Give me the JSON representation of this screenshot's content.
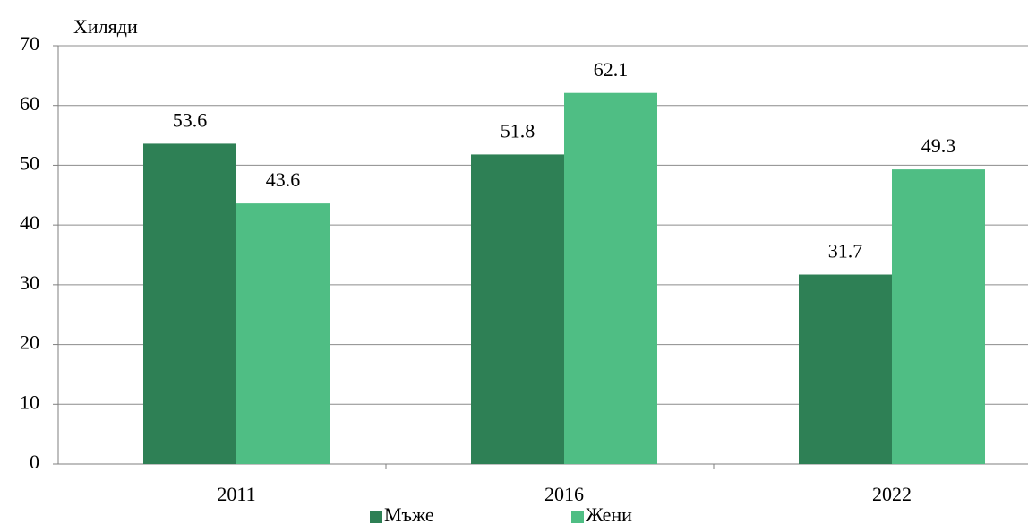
{
  "chart_data": {
    "type": "bar",
    "y_label": "Хиляди",
    "categories": [
      "2011",
      "2016",
      "2022"
    ],
    "series": [
      {
        "name": "Мъже",
        "color": "#2e8055",
        "values": [
          53.6,
          51.8,
          31.7
        ]
      },
      {
        "name": "Жени",
        "color": "#4fbe84",
        "values": [
          43.6,
          62.1,
          49.3
        ]
      }
    ],
    "ylim": [
      0,
      70
    ],
    "yticks": [
      0,
      10,
      20,
      30,
      40,
      50,
      60,
      70
    ],
    "grid": true,
    "legend": "bottom"
  }
}
